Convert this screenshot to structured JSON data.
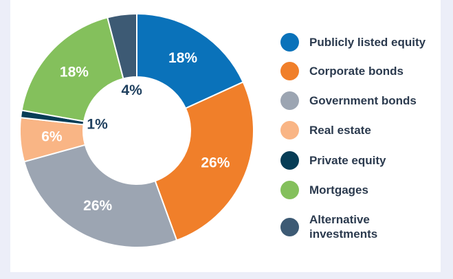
{
  "chart_data": {
    "type": "donut",
    "categories": [
      "Publicly listed equity",
      "Corporate bonds",
      "Government bonds",
      "Real estate",
      "Private equity",
      "Mortgages",
      "Alternative investments"
    ],
    "values": [
      18,
      26,
      26,
      6,
      1,
      18,
      4
    ],
    "value_labels": [
      "18%",
      "26%",
      "26%",
      "6%",
      "1%",
      "18%",
      "4%"
    ],
    "colors": [
      "#0a72ba",
      "#f07f2a",
      "#9ca5b2",
      "#f9b585",
      "#073d56",
      "#84c05c",
      "#3d5a74"
    ],
    "legend": "right"
  }
}
